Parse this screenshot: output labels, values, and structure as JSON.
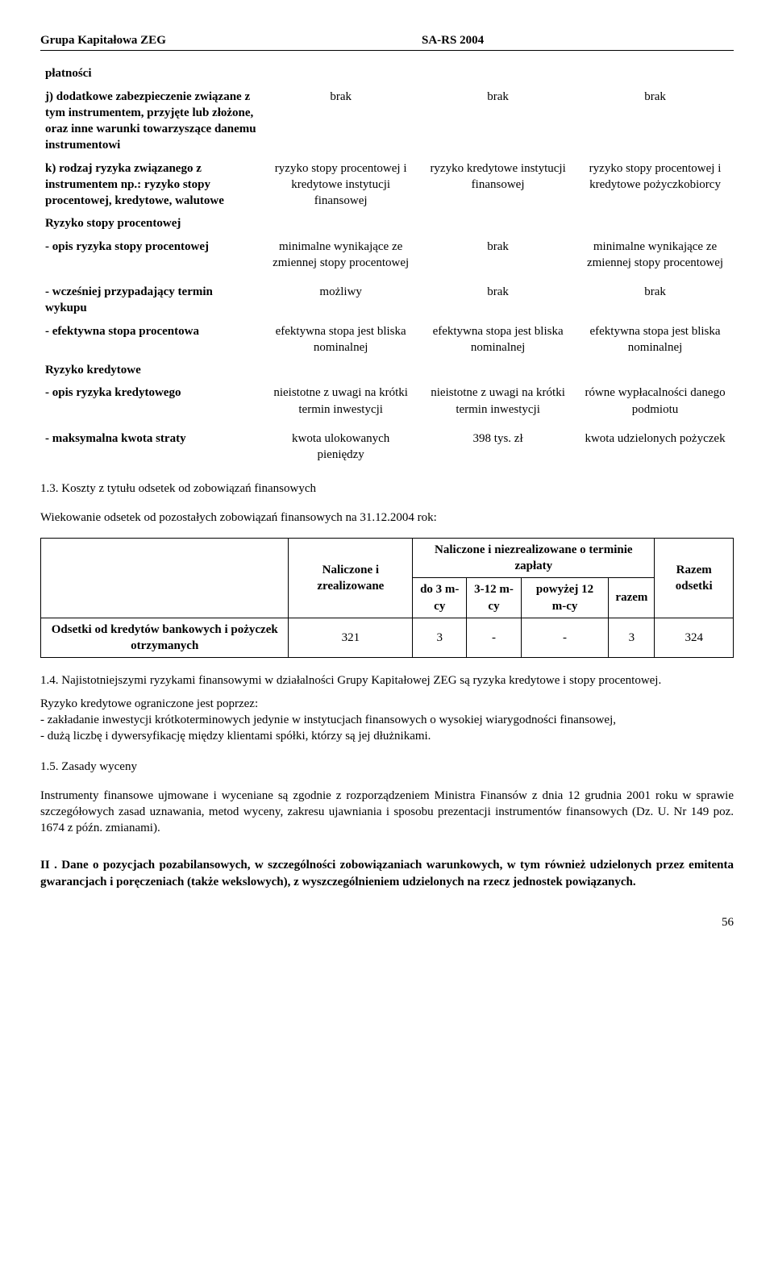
{
  "header": {
    "left": "Grupa Kapitałowa ZEG",
    "right": "SA-RS 2004"
  },
  "mainTable": {
    "rows": [
      {
        "label": "płatności",
        "c1": "",
        "c2": "",
        "c3": ""
      },
      {
        "label": "j) dodatkowe zabezpieczenie związane z tym instrumentem, przyjęte lub złożone, oraz inne warunki towarzyszące danemu instrumentowi",
        "c1": "brak",
        "c2": "brak",
        "c3": "brak"
      },
      {
        "label": "k) rodzaj ryzyka związanego z instrumentem np.: ryzyko stopy procentowej, kredytowe, walutowe",
        "c1": "ryzyko stopy procentowej i kredytowe instytucji finansowej",
        "c2": "ryzyko  kredytowe instytucji finansowej",
        "c3": "ryzyko stopy procentowej i kredytowe pożyczkobiorcy"
      },
      {
        "label": "Ryzyko stopy procentowej",
        "c1": "",
        "c2": "",
        "c3": ""
      },
      {
        "label": "- opis ryzyka stopy procentowej",
        "c1": "minimalne wynikające ze zmiennej stopy procentowej",
        "c2": "brak",
        "c3": "minimalne wynikające ze zmiennej stopy procentowej"
      },
      {
        "spacer": true
      },
      {
        "label": "- wcześniej przypadający termin wykupu",
        "c1": "możliwy",
        "c2": "brak",
        "c3": "brak"
      },
      {
        "label": "- efektywna stopa procentowa",
        "c1": "efektywna stopa jest bliska nominalnej",
        "c2": "efektywna stopa jest bliska nominalnej",
        "c3": "efektywna stopa jest bliska nominalnej"
      },
      {
        "label": "Ryzyko kredytowe",
        "c1": "",
        "c2": "",
        "c3": ""
      },
      {
        "label": "- opis ryzyka kredytowego",
        "c1": "nieistotne z uwagi na krótki termin inwestycji",
        "c2": "nieistotne z uwagi na krótki termin inwestycji",
        "c3": "równe wypłacalności danego podmiotu"
      },
      {
        "spacer": true
      },
      {
        "label": "- maksymalna kwota straty",
        "c1": "kwota ulokowanych pieniędzy",
        "c2": "398  tys. zł",
        "c3": "kwota udzielonych pożyczek"
      }
    ]
  },
  "sec13": "1.3. Koszty z tytułu odsetek od zobowiązań finansowych",
  "wiekLine": "Wiekowanie odsetek od pozostałych zobowiązań finansowych na 31.12.2004 rok:",
  "odsetkiTable": {
    "headers": {
      "colA": "Naliczone i zrealizowane",
      "groupB": "Naliczone i niezrealizowane o terminie zapłaty",
      "colB1": "do 3 m-cy",
      "colB2": "3-12 m-cy",
      "colB3": "powyżej 12 m-cy",
      "colB4": "razem",
      "colC": "Razem odsetki"
    },
    "rowLabel": "Odsetki od kredytów bankowych i pożyczek otrzymanych",
    "values": {
      "v1": "321",
      "v2": "3",
      "v3": "-",
      "v4": "-",
      "v5": "3",
      "v6": "324"
    }
  },
  "sec14": "1.4. Najistotniejszymi ryzykami finansowymi w działalności Grupy Kapitałowej ZEG są ryzyka kredytowe i stopy procentowej.",
  "sec14b": "Ryzyko kredytowe ograniczone jest poprzez:",
  "sec14c": "- zakładanie inwestycji krótkoterminowych jedynie w instytucjach finansowych o wysokiej wiarygodności finansowej,",
  "sec14d": "- dużą liczbę i dywersyfikację między klientami spółki, którzy są jej dłużnikami.",
  "sec15": "1.5. Zasady wyceny",
  "sec15body": "Instrumenty finansowe ujmowane i wyceniane są zgodnie z rozporządzeniem Ministra Finansów z dnia 12 grudnia 2001 roku w sprawie szczegółowych zasad uznawania, metod wyceny, zakresu ujawniania i sposobu prezentacji instrumentów finansowych (Dz. U. Nr 149 poz. 1674 z późn. zmianami).",
  "secII": "II . Dane o pozycjach pozabilansowych, w szczególności zobowiązaniach warunkowych, w tym również udzielonych przez emitenta gwarancjach i poręczeniach (także wekslowych), z wyszczególnieniem udzielonych na rzecz jednostek powiązanych.",
  "pageNumber": "56"
}
